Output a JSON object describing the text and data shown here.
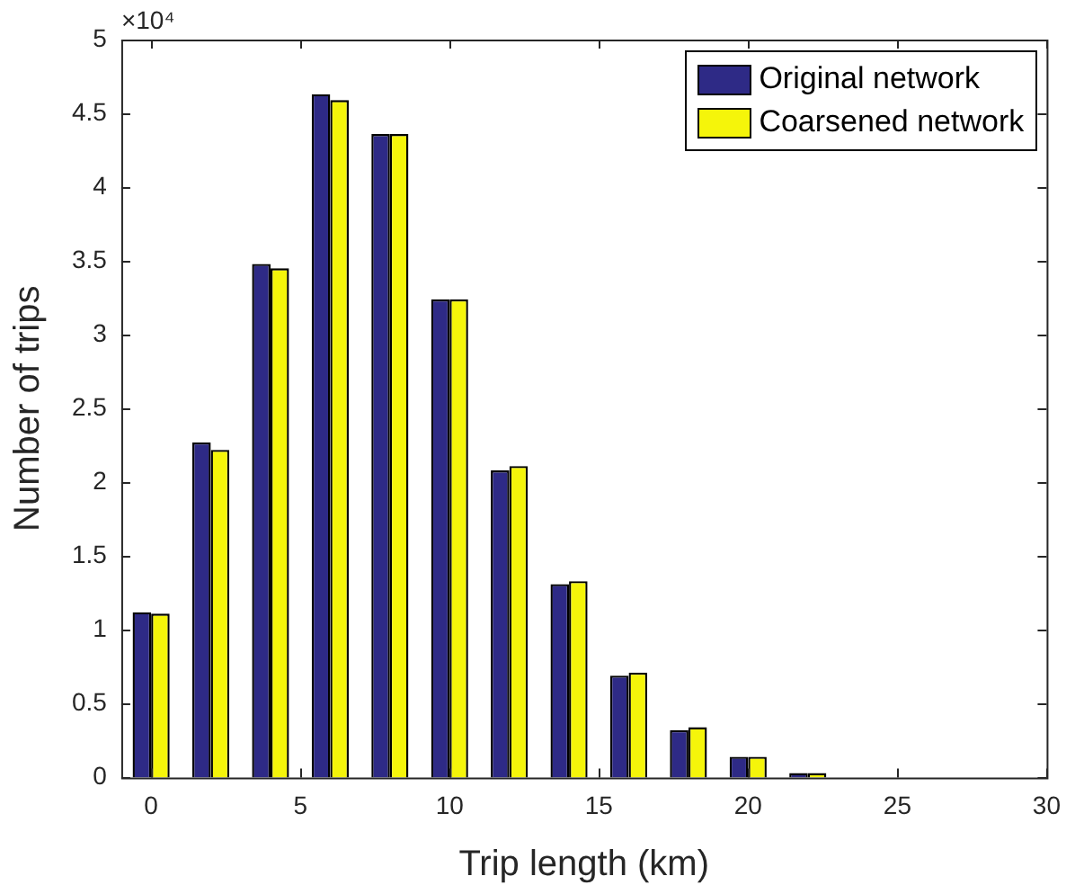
{
  "chart_data": {
    "type": "bar",
    "xlabel": "Trip length (km)",
    "ylabel": "Number of trips",
    "x": [
      0,
      2,
      4,
      6,
      8,
      10,
      12,
      14,
      16,
      18,
      20,
      22
    ],
    "series": [
      {
        "name": "Original network",
        "color": "#2e2a86",
        "values": [
          1.12,
          2.27,
          3.48,
          4.63,
          4.36,
          3.24,
          2.08,
          1.31,
          0.69,
          0.32,
          0.14,
          0.03
        ]
      },
      {
        "name": "Coarsened network",
        "color": "#f5f50a",
        "values": [
          1.11,
          2.22,
          3.45,
          4.59,
          4.36,
          3.24,
          2.11,
          1.33,
          0.71,
          0.34,
          0.14,
          0.03
        ]
      }
    ],
    "xlim": [
      -1,
      30
    ],
    "xticks": [
      0,
      5,
      10,
      15,
      20,
      25,
      30
    ],
    "ylim": [
      0,
      5
    ],
    "yticks": [
      0,
      0.5,
      1,
      1.5,
      2,
      2.5,
      3,
      3.5,
      4,
      4.5,
      5
    ],
    "annotations": [
      "×10⁴"
    ],
    "grid": false,
    "legend": "top right"
  }
}
